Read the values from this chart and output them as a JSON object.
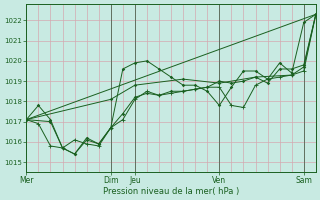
{
  "xlabel": "Pression niveau de la mer( hPa )",
  "ylim": [
    1014.5,
    1022.8
  ],
  "xlim": [
    0,
    48
  ],
  "yticks": [
    1015,
    1016,
    1017,
    1018,
    1019,
    1020,
    1021,
    1022
  ],
  "xtick_positions": [
    0,
    14,
    18,
    32,
    46
  ],
  "xtick_labels": [
    "Mer",
    "Dim",
    "Jeu",
    "Ven",
    "Sam"
  ],
  "vlines": [
    14,
    18,
    32,
    46
  ],
  "background_color": "#c8eae2",
  "grid_color_h": "#d4a8b0",
  "grid_color_v": "#d4a8b0",
  "line_color": "#1a6020",
  "trend_x": [
    0,
    48
  ],
  "trend_y": [
    1017.1,
    1022.3
  ],
  "line1_x": [
    0,
    2,
    4,
    6,
    8,
    10,
    12,
    14,
    16,
    18,
    20,
    22,
    24,
    26,
    28,
    30,
    32,
    34,
    36,
    38,
    40,
    42,
    44,
    46,
    48
  ],
  "line1_y": [
    1017.1,
    1017.8,
    1017.1,
    1015.7,
    1015.4,
    1016.1,
    1015.9,
    1016.7,
    1017.4,
    1018.2,
    1018.4,
    1018.3,
    1018.5,
    1018.5,
    1018.6,
    1018.7,
    1019.0,
    1018.9,
    1019.0,
    1019.2,
    1018.9,
    1019.6,
    1019.6,
    1019.8,
    1022.3
  ],
  "line2_x": [
    0,
    4,
    6,
    8,
    10,
    12,
    14,
    16,
    18,
    20,
    22,
    24,
    26,
    28,
    30,
    32,
    34,
    36,
    38,
    40,
    42,
    44,
    46,
    48
  ],
  "line2_y": [
    1017.1,
    1017.0,
    1015.7,
    1015.4,
    1016.2,
    1015.9,
    1016.7,
    1019.6,
    1019.9,
    1020.0,
    1019.6,
    1019.2,
    1018.8,
    1018.8,
    1018.5,
    1017.8,
    1018.7,
    1019.5,
    1019.5,
    1019.1,
    1019.9,
    1019.4,
    1021.9,
    1022.3
  ],
  "line3_x": [
    0,
    2,
    4,
    6,
    8,
    10,
    12,
    14,
    16,
    18,
    20,
    22,
    24,
    26,
    28,
    30,
    32,
    34,
    36,
    38,
    40,
    42,
    44,
    46,
    48
  ],
  "line3_y": [
    1017.1,
    1016.9,
    1015.8,
    1015.7,
    1016.1,
    1015.9,
    1015.8,
    1016.7,
    1017.1,
    1018.1,
    1018.5,
    1018.3,
    1018.4,
    1018.5,
    1018.6,
    1018.7,
    1018.7,
    1017.8,
    1017.7,
    1018.8,
    1019.1,
    1019.2,
    1019.3,
    1019.5,
    1022.3
  ],
  "line4_x": [
    0,
    14,
    18,
    26,
    32,
    38,
    44,
    46,
    48
  ],
  "line4_y": [
    1017.1,
    1018.1,
    1018.8,
    1019.1,
    1018.9,
    1019.2,
    1019.3,
    1019.7,
    1022.3
  ]
}
